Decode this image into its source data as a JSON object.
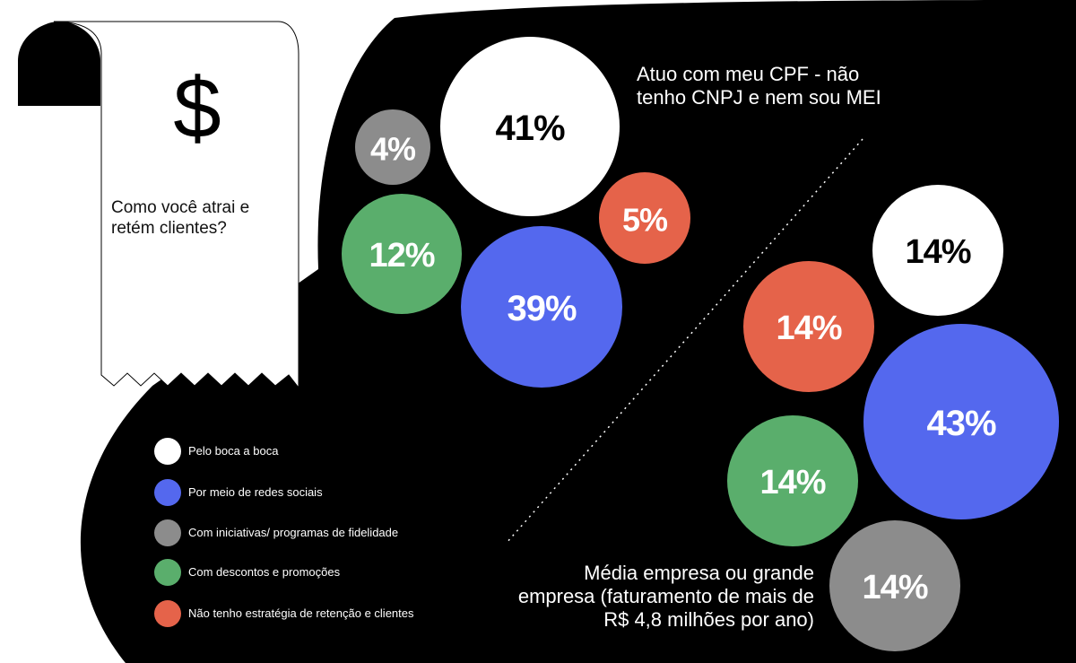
{
  "receipt": {
    "symbol": "$",
    "question": "Como você atrai e retém clientes?"
  },
  "colors": {
    "background": "#000000",
    "boca_a_boca": "#ffffff",
    "redes_sociais": "#5468ee",
    "fidelidade": "#8c8c8c",
    "descontos": "#5aae6c",
    "sem_estrategia": "#e5634a"
  },
  "legend": [
    {
      "label": "Pelo boca a boca",
      "color": "#ffffff"
    },
    {
      "label": "Por meio de redes sociais",
      "color": "#5468ee"
    },
    {
      "label": "Com iniciativas/ programas de fidelidade",
      "color": "#8c8c8c"
    },
    {
      "label": "Com descontos e promoções",
      "color": "#5aae6c"
    },
    {
      "label": "Não tenho estratégia de retenção e clientes",
      "color": "#e5634a"
    }
  ],
  "chart_data": [
    {
      "type": "bubble",
      "title": "Atuo com meu CPF - não tenho CNPJ e nem sou MEI",
      "categories": [
        "Pelo boca a boca",
        "Por meio de redes sociais",
        "Com iniciativas/ programas de fidelidade",
        "Com descontos e promoções",
        "Não tenho estratégia de retenção e clientes"
      ],
      "values": [
        41,
        39,
        4,
        12,
        5
      ],
      "labels": [
        "41%",
        "39%",
        "4%",
        "12%",
        "5%"
      ],
      "unit": "%"
    },
    {
      "type": "bubble",
      "title": "Média empresa ou grande empresa (faturamento de mais de R$ 4,8 milhões por ano)",
      "categories": [
        "Pelo boca a boca",
        "Por meio de redes sociais",
        "Com iniciativas/ programas de fidelidade",
        "Com descontos e promoções",
        "Não tenho estratégia de retenção e clientes"
      ],
      "values": [
        14,
        43,
        14,
        14,
        14
      ],
      "labels": [
        "14%",
        "43%",
        "14%",
        "14%",
        "14%"
      ],
      "unit": "%"
    }
  ]
}
